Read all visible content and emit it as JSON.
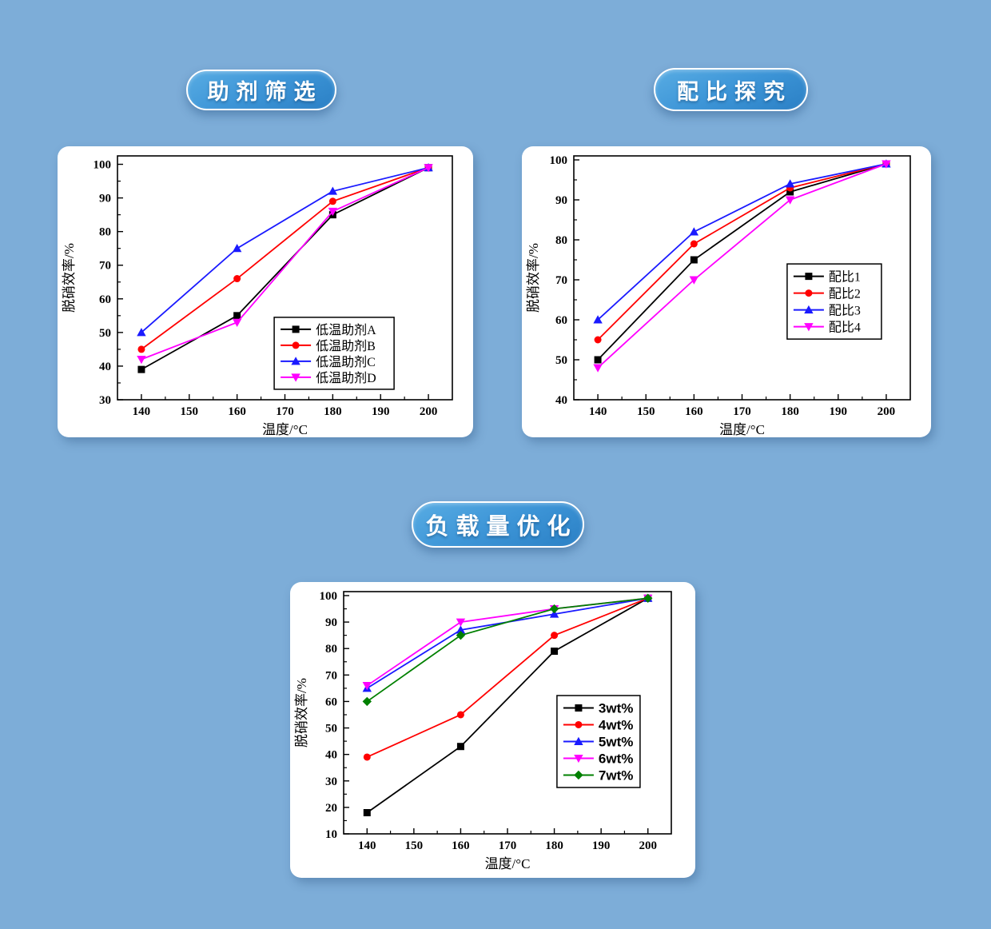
{
  "theme": {
    "background": "#7dadd8",
    "card_bg": "#ffffff",
    "badge_gradient_start": "#58ace3",
    "badge_gradient_end": "#2b80c5",
    "badge_border": "#ffffff",
    "badge_text_color": "#ffffff",
    "axis_color": "#000000",
    "legend_bg": "#ffffff"
  },
  "chart_data": [
    {
      "type": "line",
      "title": "助剂筛选",
      "xlabel": "温度/°C",
      "ylabel": "脱硝效率/%",
      "x": [
        140,
        160,
        180,
        200
      ],
      "xlim": [
        135,
        205
      ],
      "ylim": [
        30,
        102.5
      ],
      "xticks": [
        140,
        150,
        160,
        170,
        180,
        190,
        200
      ],
      "yticks": [
        30,
        40,
        50,
        60,
        70,
        80,
        90,
        100
      ],
      "grid": false,
      "legend_pos": {
        "fx": 0.468,
        "fy": 0.662
      },
      "legend_sans": false,
      "series": [
        {
          "name": "低温助剂A",
          "color": "#000000",
          "marker": "square",
          "values": [
            39,
            55,
            85,
            99
          ]
        },
        {
          "name": "低温助剂B",
          "color": "#ff0000",
          "marker": "circle",
          "values": [
            45,
            66,
            89,
            99
          ]
        },
        {
          "name": "低温助剂C",
          "color": "#1a1aff",
          "marker": "triangle-up",
          "values": [
            50,
            75,
            92,
            99
          ]
        },
        {
          "name": "低温助剂D",
          "color": "#ff00ff",
          "marker": "triangle-down",
          "values": [
            42,
            53,
            86,
            99
          ]
        }
      ]
    },
    {
      "type": "line",
      "title": "配比探究",
      "xlabel": "温度/°C",
      "ylabel": "脱硝效率/%",
      "x": [
        140,
        160,
        180,
        200
      ],
      "xlim": [
        135,
        205
      ],
      "ylim": [
        40,
        101
      ],
      "xticks": [
        140,
        150,
        160,
        170,
        180,
        190,
        200
      ],
      "yticks": [
        40,
        50,
        60,
        70,
        80,
        90,
        100
      ],
      "grid": false,
      "legend_pos": {
        "fx": 0.634,
        "fy": 0.443
      },
      "legend_sans": false,
      "series": [
        {
          "name": "配比1",
          "color": "#000000",
          "marker": "square",
          "values": [
            50,
            75,
            92,
            99
          ]
        },
        {
          "name": "配比2",
          "color": "#ff0000",
          "marker": "circle",
          "values": [
            55,
            79,
            93,
            99
          ]
        },
        {
          "name": "配比3",
          "color": "#1a1aff",
          "marker": "triangle-up",
          "values": [
            60,
            82,
            94,
            99
          ]
        },
        {
          "name": "配比4",
          "color": "#ff00ff",
          "marker": "triangle-down",
          "values": [
            48,
            70,
            90,
            99
          ]
        }
      ]
    },
    {
      "type": "line",
      "title": "负载量优化",
      "xlabel": "温度/°C",
      "ylabel": "脱硝效率/%",
      "x": [
        140,
        160,
        180,
        200
      ],
      "xlim": [
        135,
        205
      ],
      "ylim": [
        10,
        101.5
      ],
      "xticks": [
        140,
        150,
        160,
        170,
        180,
        190,
        200
      ],
      "yticks": [
        10,
        20,
        30,
        40,
        50,
        60,
        70,
        80,
        90,
        100
      ],
      "grid": false,
      "legend_pos": {
        "fx": 0.651,
        "fy": 0.429
      },
      "legend_sans": true,
      "series": [
        {
          "name": "3wt%",
          "color": "#000000",
          "marker": "square",
          "values": [
            18,
            43,
            79,
            99
          ]
        },
        {
          "name": "4wt%",
          "color": "#ff0000",
          "marker": "circle",
          "values": [
            39,
            55,
            85,
            99
          ]
        },
        {
          "name": "5wt%",
          "color": "#1a1aff",
          "marker": "triangle-up",
          "values": [
            65,
            87,
            93,
            99
          ]
        },
        {
          "name": "6wt%",
          "color": "#ff00ff",
          "marker": "triangle-down",
          "values": [
            66,
            90,
            95,
            99
          ]
        },
        {
          "name": "7wt%",
          "color": "#008000",
          "marker": "diamond",
          "values": [
            60,
            85,
            95,
            99
          ]
        }
      ]
    }
  ]
}
